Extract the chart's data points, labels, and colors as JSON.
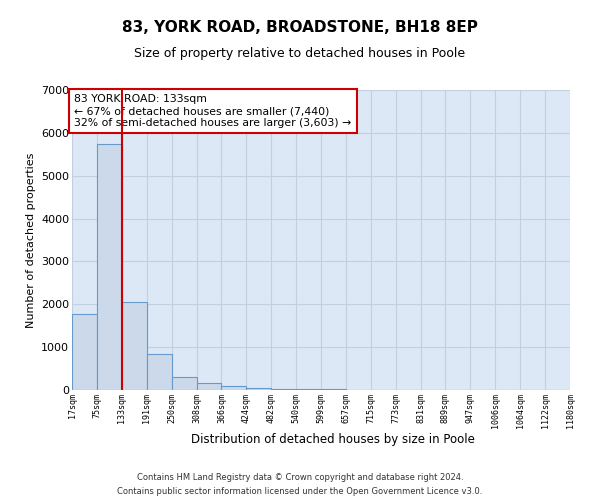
{
  "title1": "83, YORK ROAD, BROADSTONE, BH18 8EP",
  "title2": "Size of property relative to detached houses in Poole",
  "xlabel": "Distribution of detached houses by size in Poole",
  "ylabel": "Number of detached properties",
  "annotation_line1": "83 YORK ROAD: 133sqm",
  "annotation_line2": "← 67% of detached houses are smaller (7,440)",
  "annotation_line3": "32% of semi-detached houses are larger (3,603) →",
  "bin_edges": [
    17,
    75,
    133,
    191,
    250,
    308,
    366,
    424,
    482,
    540,
    599,
    657,
    715,
    773,
    831,
    889,
    947,
    1006,
    1064,
    1122,
    1180
  ],
  "bar_heights": [
    1780,
    5750,
    2060,
    830,
    310,
    170,
    90,
    55,
    35,
    20,
    15,
    10,
    8,
    6,
    5,
    4,
    3,
    3,
    2,
    2
  ],
  "bar_color": "#ccd9ea",
  "bar_edge_color": "#6699cc",
  "vline_x": 133,
  "vline_color": "#cc0000",
  "tick_labels": [
    "17sqm",
    "75sqm",
    "133sqm",
    "191sqm",
    "250sqm",
    "308sqm",
    "366sqm",
    "424sqm",
    "482sqm",
    "540sqm",
    "599sqm",
    "657sqm",
    "715sqm",
    "773sqm",
    "831sqm",
    "889sqm",
    "947sqm",
    "1006sqm",
    "1064sqm",
    "1122sqm",
    "1180sqm"
  ],
  "ylim": [
    0,
    7000
  ],
  "background_color": "#ffffff",
  "plot_bg_color": "#dce8f5",
  "grid_color": "#c0d0e0",
  "footnote1": "Contains HM Land Registry data © Crown copyright and database right 2024.",
  "footnote2": "Contains public sector information licensed under the Open Government Licence v3.0."
}
